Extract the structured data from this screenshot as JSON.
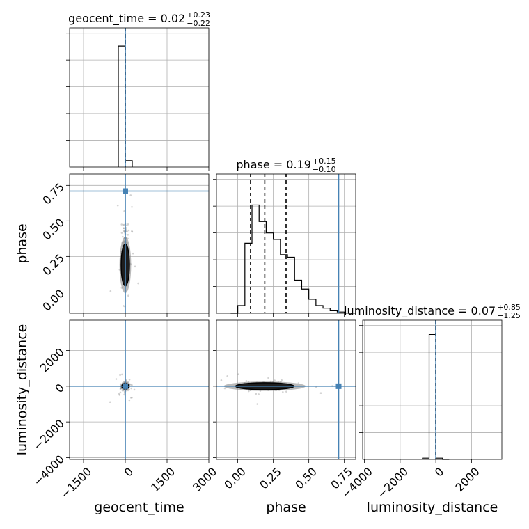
{
  "chart_data": {
    "type": "corner",
    "parameters": [
      "geocent_time",
      "phase",
      "luminosity_distance"
    ],
    "titles": [
      {
        "param": "geocent_time",
        "label": "geocent_time = 0.02",
        "plus": "+0.23",
        "minus": "−0.22"
      },
      {
        "param": "phase",
        "label": "phase = 0.19",
        "plus": "+0.15",
        "minus": "−0.10"
      },
      {
        "param": "luminosity_distance",
        "label": "luminosity_distance = 0.07",
        "plus": "+0.85",
        "minus": "−1.25"
      }
    ],
    "truths": {
      "geocent_time": 0,
      "phase": 0.71,
      "luminosity_distance": 0
    },
    "ranges": {
      "geocent_time": [
        -2000,
        3000
      ],
      "phase": [
        -0.15,
        0.83
      ],
      "luminosity_distance": [
        -4100,
        3700
      ]
    },
    "ticks": {
      "geocent_time": [
        {
          "value": -1500,
          "label": "−1500"
        },
        {
          "value": 0,
          "label": "0"
        },
        {
          "value": 1500,
          "label": "1500"
        },
        {
          "value": 3000,
          "label": "3000"
        }
      ],
      "phase": [
        {
          "value": 0.0,
          "label": "0.00"
        },
        {
          "value": 0.25,
          "label": "0.25"
        },
        {
          "value": 0.5,
          "label": "0.50"
        },
        {
          "value": 0.75,
          "label": "0.75"
        }
      ],
      "luminosity_distance": [
        {
          "value": -4000,
          "label": "−4000"
        },
        {
          "value": -2000,
          "label": "−2000"
        },
        {
          "value": 0,
          "label": "0"
        },
        {
          "value": 2000,
          "label": "2000"
        }
      ]
    },
    "quantiles": {
      "geocent_time": [
        -0.2,
        0.02,
        0.25
      ],
      "phase": [
        0.09,
        0.19,
        0.34
      ],
      "luminosity_distance": [
        -1.18,
        0.07,
        0.92
      ]
    },
    "histograms": {
      "geocent_time": {
        "edges": [
          -250,
          0,
          250
        ],
        "counts": [
          0.95,
          0.05
        ]
      },
      "phase": {
        "edges": [
          -0.05,
          0.0,
          0.05,
          0.1,
          0.15,
          0.2,
          0.25,
          0.3,
          0.35,
          0.4,
          0.45,
          0.5,
          0.55,
          0.6,
          0.65,
          0.7,
          0.75
        ],
        "counts": [
          0,
          0.06,
          0.55,
          0.85,
          0.72,
          0.63,
          0.58,
          0.46,
          0.44,
          0.26,
          0.19,
          0.11,
          0.06,
          0.04,
          0.02,
          0.01
        ]
      },
      "luminosity_distance": {
        "edges": [
          -750,
          -375,
          0,
          375,
          750
        ],
        "counts": [
          0.01,
          0.98,
          0.01,
          0
        ]
      }
    }
  }
}
